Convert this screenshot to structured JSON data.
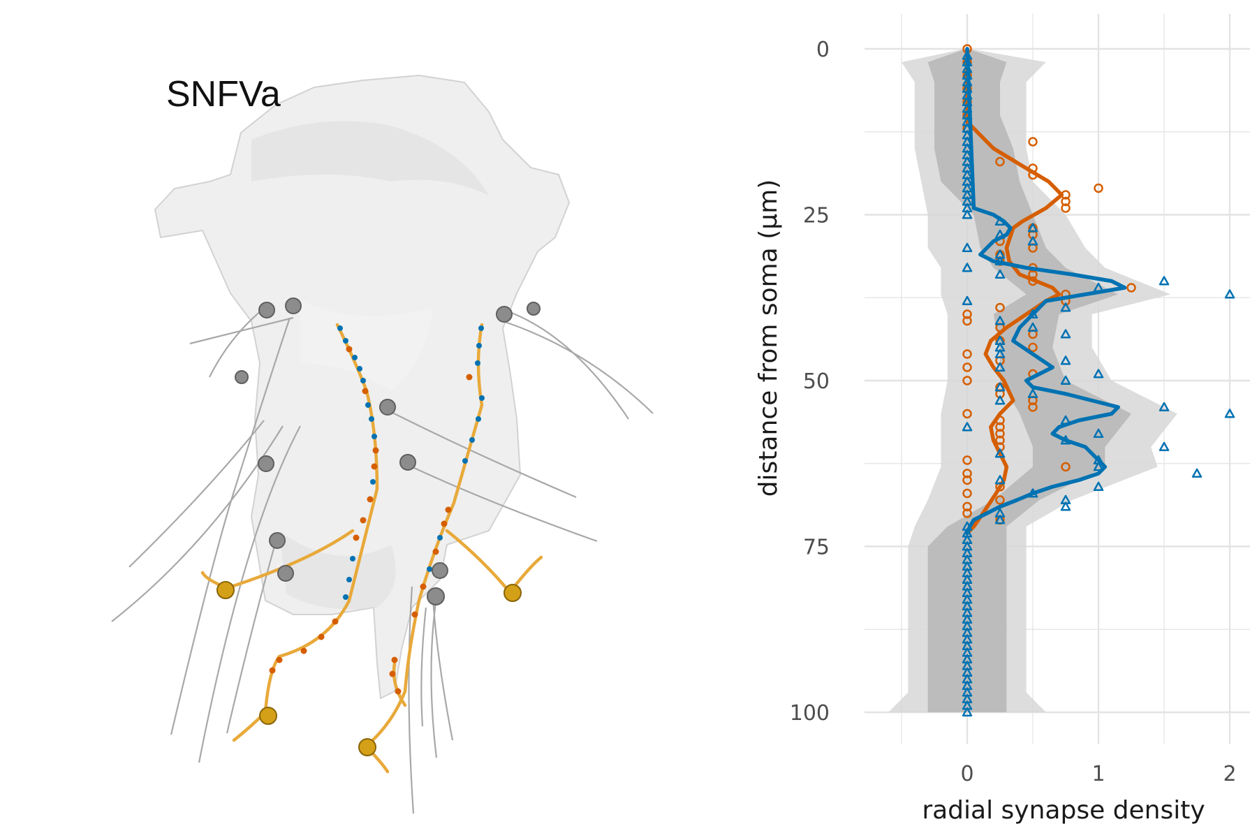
{
  "panel_label": "SNFVa",
  "colors": {
    "orange": "#d55e00",
    "blue": "#0072b2",
    "yellow": "#e8a93a",
    "gold": "#d4a017",
    "gray_neurite": "#a8a8a8",
    "grid": "#e3e3e3",
    "ribbon_outer": "#d7d7d7",
    "ribbon_inner": "#b6b6b6",
    "mesh": "#e9e9e9"
  },
  "chart_data": {
    "type": "line",
    "xlabel": "radial synapse density",
    "ylabel": "distance from soma (µm)",
    "xlim": [
      -0.5,
      2.1
    ],
    "ylim": [
      100,
      -5
    ],
    "y_reversed": true,
    "x_ticks": [
      0,
      1,
      2
    ],
    "y_ticks": [
      0,
      25,
      50,
      75,
      100
    ],
    "grid": true,
    "legend": "none",
    "ribbon_y": [
      0,
      2,
      5,
      10,
      15,
      20,
      25,
      30,
      33,
      37,
      40,
      45,
      50,
      55,
      60,
      63,
      68,
      72,
      75,
      80,
      90,
      97,
      100
    ],
    "ribbon_outer": {
      "lo": [
        -0.02,
        -0.5,
        -0.4,
        -0.4,
        -0.4,
        -0.35,
        -0.3,
        -0.3,
        -0.2,
        -0.2,
        -0.15,
        -0.15,
        -0.15,
        -0.2,
        -0.2,
        -0.2,
        -0.3,
        -0.4,
        -0.45,
        -0.45,
        -0.45,
        -0.45,
        -0.6
      ],
      "hi": [
        0.02,
        0.6,
        0.45,
        0.45,
        0.45,
        0.5,
        0.75,
        0.9,
        1.05,
        1.55,
        0.95,
        0.95,
        1.1,
        1.6,
        1.4,
        1.45,
        0.8,
        0.45,
        0.45,
        0.45,
        0.45,
        0.45,
        0.6
      ]
    },
    "ribbon_inner": {
      "lo": [
        -0.01,
        -0.3,
        -0.25,
        -0.25,
        -0.25,
        -0.2,
        0.05,
        0.1,
        0.2,
        0.45,
        0.2,
        0.25,
        0.25,
        0.4,
        0.5,
        0.5,
        0.2,
        -0.15,
        -0.3,
        -0.3,
        -0.3,
        -0.3,
        -0.3
      ],
      "hi": [
        0.01,
        0.3,
        0.25,
        0.25,
        0.35,
        0.4,
        0.5,
        0.6,
        0.75,
        1.15,
        0.7,
        0.65,
        0.75,
        1.25,
        1.05,
        1.05,
        0.55,
        0.3,
        0.3,
        0.3,
        0.3,
        0.3,
        0.3
      ]
    },
    "series": [
      {
        "color": "#d55e00",
        "marker": "circle",
        "line": {
          "y": [
            0,
            11,
            12,
            15,
            18,
            20,
            22,
            24,
            26,
            27,
            30,
            32,
            34,
            36,
            37,
            38,
            40,
            42,
            44,
            46,
            48,
            50,
            53,
            55,
            57,
            59,
            61,
            63,
            65,
            67,
            70,
            72,
            73
          ],
          "x": [
            0,
            0,
            0.05,
            0.2,
            0.45,
            0.62,
            0.72,
            0.6,
            0.42,
            0.35,
            0.3,
            0.32,
            0.4,
            0.65,
            0.7,
            0.6,
            0.45,
            0.3,
            0.18,
            0.14,
            0.2,
            0.28,
            0.35,
            0.25,
            0.18,
            0.2,
            0.25,
            0.3,
            0.28,
            0.22,
            0.12,
            0.05,
            0
          ]
        },
        "points": {
          "y": [
            0,
            2,
            4,
            6,
            8,
            10,
            12,
            14,
            17,
            18,
            19,
            21,
            22,
            23,
            24,
            27,
            28,
            29,
            30,
            31,
            32,
            33,
            34,
            35,
            36,
            37,
            38,
            39,
            40,
            41,
            42,
            43,
            44,
            45,
            46,
            47,
            48,
            49,
            50,
            51,
            52,
            53,
            54,
            55,
            56,
            57,
            58,
            59,
            60,
            62,
            63,
            64,
            65,
            66,
            67,
            68,
            69,
            70,
            71
          ],
          "x": [
            0,
            0,
            0,
            0,
            0,
            0,
            0,
            0.5,
            0.25,
            0.5,
            0.5,
            1.0,
            0.75,
            0.75,
            0.75,
            0.5,
            0.5,
            0.25,
            0.5,
            0.25,
            0.25,
            0.5,
            0.5,
            0.5,
            1.25,
            0.75,
            0.75,
            0.25,
            0,
            0,
            0.25,
            0.5,
            0.25,
            0.5,
            0,
            0.25,
            0,
            0.5,
            0,
            0.25,
            0.25,
            0.5,
            0.5,
            0,
            0.25,
            0.25,
            0.25,
            0.25,
            0.25,
            0,
            0.75,
            0,
            0,
            0.25,
            0,
            0.25,
            0,
            0,
            0.25
          ]
        }
      },
      {
        "color": "#0072b2",
        "marker": "triangle",
        "line": {
          "y": [
            0,
            24,
            25,
            26,
            27,
            28,
            29,
            30,
            31,
            32,
            33,
            34,
            35,
            36,
            37,
            38,
            39,
            40,
            41,
            42,
            44,
            46,
            48,
            49,
            50,
            51,
            52,
            53,
            54,
            55,
            56,
            57,
            58,
            59,
            60,
            61,
            62,
            63,
            64,
            65,
            66,
            67,
            68,
            69,
            70,
            71,
            72,
            73
          ],
          "x": [
            0,
            0.05,
            0.2,
            0.28,
            0.33,
            0.3,
            0.2,
            0.15,
            0.1,
            0.2,
            0.45,
            0.8,
            1.1,
            1.2,
            0.9,
            0.6,
            0.55,
            0.5,
            0.45,
            0.4,
            0.35,
            0.5,
            0.65,
            0.55,
            0.45,
            0.5,
            0.75,
            0.95,
            1.15,
            1.1,
            0.85,
            0.7,
            0.65,
            0.75,
            0.9,
            0.95,
            1.0,
            1.05,
            1.0,
            0.85,
            0.65,
            0.5,
            0.38,
            0.25,
            0.15,
            0.05,
            0.02,
            0
          ]
        },
        "points": {
          "y": [
            1,
            2,
            3,
            4,
            5,
            6,
            7,
            8,
            9,
            10,
            11,
            12,
            13,
            14,
            15,
            16,
            17,
            18,
            19,
            20,
            21,
            22,
            23,
            24,
            25,
            26,
            27,
            28,
            29,
            30,
            31,
            32,
            33,
            34,
            35,
            36,
            37,
            38,
            39,
            40,
            41,
            42,
            43,
            44,
            45,
            46,
            47,
            48,
            49,
            50,
            51,
            52,
            53,
            54,
            55,
            56,
            57,
            58,
            59,
            60,
            61,
            62,
            63,
            64,
            65,
            66,
            67,
            68,
            69,
            70,
            71,
            72,
            73,
            74,
            75,
            76,
            77,
            78,
            79,
            80,
            81,
            82,
            83,
            84,
            85,
            86,
            87,
            88,
            89,
            90,
            91,
            92,
            93,
            94,
            95,
            96,
            97,
            98,
            99,
            100
          ],
          "x": [
            0,
            0,
            0,
            0,
            0,
            0,
            0,
            0,
            0,
            0,
            0,
            0,
            0,
            0,
            0,
            0,
            0,
            0,
            0,
            0,
            0,
            0,
            0,
            0,
            0,
            0.25,
            0.5,
            0.25,
            0.5,
            0,
            0.25,
            0.25,
            0,
            0.25,
            1.5,
            1.0,
            2.0,
            0,
            0.75,
            0.5,
            0.25,
            0.5,
            0.75,
            0.25,
            0.25,
            0.25,
            0.75,
            0.25,
            1.0,
            0.75,
            0.25,
            0.5,
            0.25,
            1.5,
            2.0,
            0.75,
            0,
            1.0,
            0.75,
            1.5,
            0.25,
            1.0,
            1.0,
            1.75,
            0.25,
            1.0,
            0.5,
            0.75,
            0.75,
            0.25,
            0.25,
            0,
            0,
            0,
            0,
            0,
            0,
            0,
            0,
            0,
            0,
            0,
            0,
            0,
            0,
            0,
            0,
            0,
            0,
            0,
            0,
            0,
            0,
            0,
            0,
            0,
            0,
            0,
            0,
            0
          ]
        }
      }
    ]
  }
}
